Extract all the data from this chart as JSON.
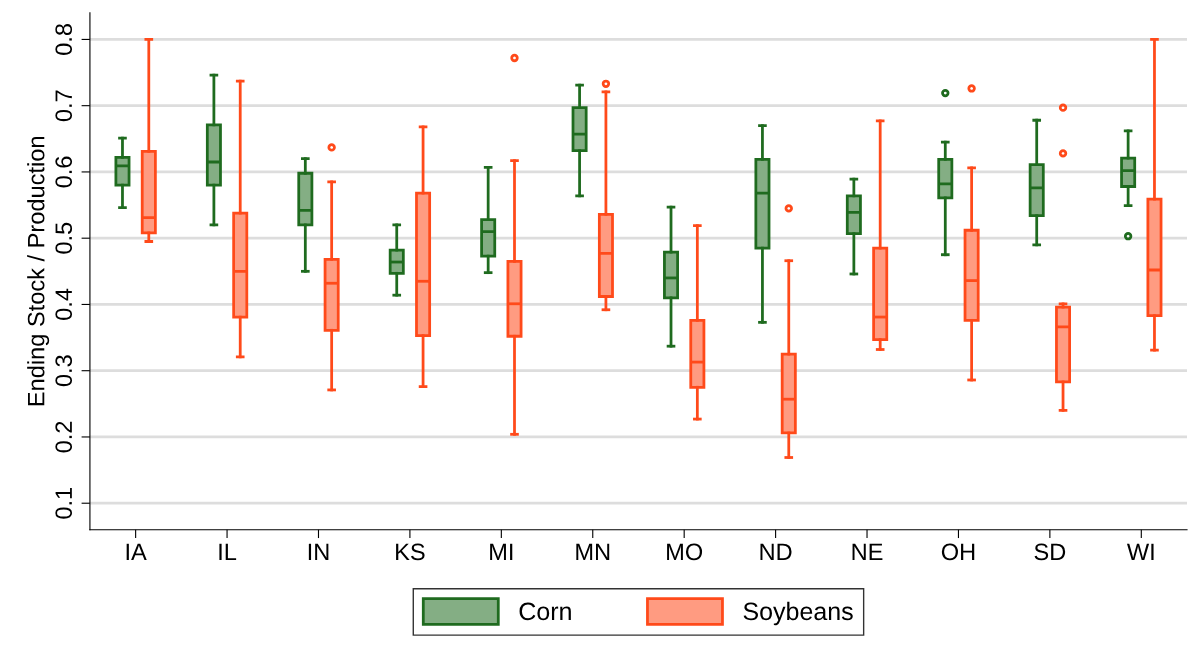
{
  "chart_data": {
    "type": "box",
    "ylabel": "Ending Stock / Production",
    "categories": [
      "IA",
      "IL",
      "IN",
      "KS",
      "MI",
      "MN",
      "MO",
      "ND",
      "NE",
      "OH",
      "SD",
      "WI"
    ],
    "ylim": [
      0.06,
      0.84
    ],
    "yticks": [
      0.1,
      0.2,
      0.3,
      0.4,
      0.5,
      0.6,
      0.7,
      0.8
    ],
    "grid": "y",
    "legend": "bottom",
    "series": [
      {
        "name": "Corn",
        "color": "#1f6b1f",
        "boxes": [
          {
            "low": 0.546,
            "q1": 0.58,
            "median": 0.609,
            "q3": 0.622,
            "high": 0.651
          },
          {
            "low": 0.52,
            "q1": 0.58,
            "median": 0.615,
            "q3": 0.671,
            "high": 0.746
          },
          {
            "low": 0.45,
            "q1": 0.52,
            "median": 0.542,
            "q3": 0.598,
            "high": 0.62
          },
          {
            "low": 0.414,
            "q1": 0.447,
            "median": 0.464,
            "q3": 0.482,
            "high": 0.52
          },
          {
            "low": 0.448,
            "q1": 0.473,
            "median": 0.51,
            "q3": 0.528,
            "high": 0.607
          },
          {
            "low": 0.564,
            "q1": 0.632,
            "median": 0.657,
            "q3": 0.697,
            "high": 0.731
          },
          {
            "low": 0.337,
            "q1": 0.41,
            "median": 0.44,
            "q3": 0.479,
            "high": 0.547
          },
          {
            "low": 0.373,
            "q1": 0.485,
            "median": 0.568,
            "q3": 0.619,
            "high": 0.67
          },
          {
            "low": 0.446,
            "q1": 0.507,
            "median": 0.539,
            "q3": 0.564,
            "high": 0.589
          },
          {
            "low": 0.475,
            "q1": 0.561,
            "median": 0.582,
            "q3": 0.619,
            "high": 0.645,
            "outliers": [
              0.719
            ]
          },
          {
            "low": 0.49,
            "q1": 0.534,
            "median": 0.576,
            "q3": 0.611,
            "high": 0.678
          },
          {
            "low": 0.549,
            "q1": 0.578,
            "median": 0.602,
            "q3": 0.621,
            "high": 0.662,
            "outliers": [
              0.503
            ]
          }
        ]
      },
      {
        "name": "Soybeans",
        "color": "#ff4a1a",
        "boxes": [
          {
            "low": 0.495,
            "q1": 0.508,
            "median": 0.531,
            "q3": 0.631,
            "high": 0.8
          },
          {
            "low": 0.321,
            "q1": 0.381,
            "median": 0.45,
            "q3": 0.538,
            "high": 0.737
          },
          {
            "low": 0.271,
            "q1": 0.361,
            "median": 0.432,
            "q3": 0.468,
            "high": 0.585,
            "outliers": [
              0.637
            ]
          },
          {
            "low": 0.276,
            "q1": 0.353,
            "median": 0.435,
            "q3": 0.568,
            "high": 0.668
          },
          {
            "low": 0.204,
            "q1": 0.352,
            "median": 0.401,
            "q3": 0.465,
            "high": 0.617,
            "outliers": [
              0.772
            ]
          },
          {
            "low": 0.392,
            "q1": 0.412,
            "median": 0.477,
            "q3": 0.536,
            "high": 0.721,
            "outliers": [
              0.733
            ]
          },
          {
            "low": 0.227,
            "q1": 0.275,
            "median": 0.313,
            "q3": 0.376,
            "high": 0.519
          },
          {
            "low": 0.169,
            "q1": 0.206,
            "median": 0.257,
            "q3": 0.325,
            "high": 0.466,
            "outliers": [
              0.545
            ]
          },
          {
            "low": 0.332,
            "q1": 0.347,
            "median": 0.381,
            "q3": 0.485,
            "high": 0.677
          },
          {
            "low": 0.286,
            "q1": 0.376,
            "median": 0.436,
            "q3": 0.512,
            "high": 0.606,
            "outliers": [
              0.726
            ]
          },
          {
            "low": 0.24,
            "q1": 0.283,
            "median": 0.366,
            "q3": 0.396,
            "high": 0.401,
            "outliers": [
              0.697,
              0.628
            ]
          },
          {
            "low": 0.331,
            "q1": 0.383,
            "median": 0.452,
            "q3": 0.559,
            "high": 0.8
          }
        ]
      }
    ]
  }
}
